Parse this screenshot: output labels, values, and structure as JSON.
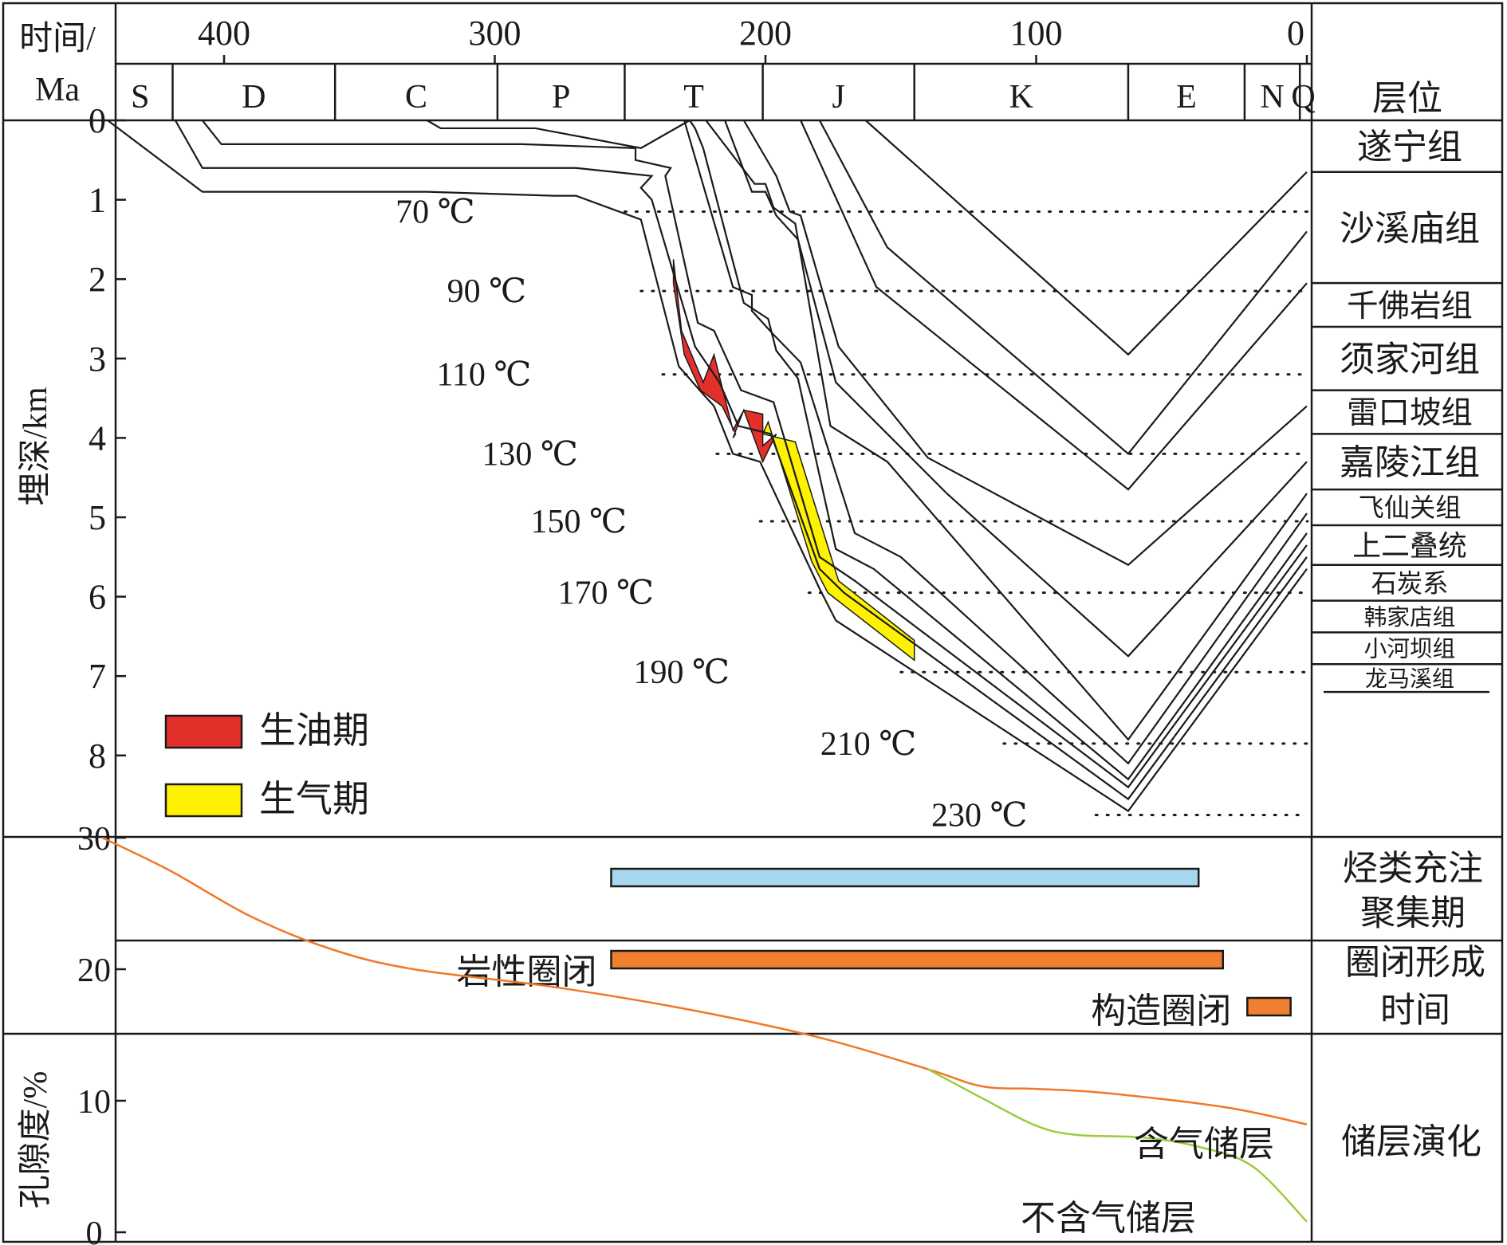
{
  "chart_data": {
    "type": "line",
    "header": {
      "time_label_line1": "时间/",
      "time_label_line2": "Ma",
      "layer_header": "层位",
      "depth_label": "埋深/km"
    },
    "x_axis": {
      "ticks": [
        400,
        300,
        200,
        100,
        0
      ],
      "range": [
        450,
        0
      ]
    },
    "periods": [
      {
        "label": "S",
        "start": 443,
        "end": 419
      },
      {
        "label": "D",
        "start": 419,
        "end": 359
      },
      {
        "label": "C",
        "start": 359,
        "end": 299
      },
      {
        "label": "P",
        "start": 299,
        "end": 252
      },
      {
        "label": "T",
        "start": 252,
        "end": 201
      },
      {
        "label": "J",
        "start": 201,
        "end": 145
      },
      {
        "label": "K",
        "start": 145,
        "end": 66
      },
      {
        "label": "E",
        "start": 66,
        "end": 23
      },
      {
        "label": "N",
        "start": 23,
        "end": 2.6
      },
      {
        "label": "Q",
        "start": 2.6,
        "end": 0
      }
    ],
    "y_axis": {
      "ticks": [
        0,
        1,
        2,
        3,
        4,
        5,
        6,
        7,
        8
      ],
      "range": [
        0,
        9
      ]
    },
    "isotherms": [
      {
        "label": "70 ℃",
        "depth": 1.15,
        "label_time": 322,
        "line_start": 252
      },
      {
        "label": "90 ℃",
        "depth": 2.15,
        "label_time": 303,
        "line_start": 246
      },
      {
        "label": "110 ℃",
        "depth": 3.2,
        "label_time": 304,
        "line_start": 238
      },
      {
        "label": "130 ℃",
        "depth": 4.2,
        "label_time": 287,
        "line_start": 218
      },
      {
        "label": "150 ℃",
        "depth": 5.05,
        "label_time": 269,
        "line_start": 202
      },
      {
        "label": "170 ℃",
        "depth": 5.95,
        "label_time": 259,
        "line_start": 184
      },
      {
        "label": "190 ℃",
        "depth": 6.95,
        "label_time": 231,
        "line_start": 150
      },
      {
        "label": "210 ℃",
        "depth": 7.85,
        "label_time": 162,
        "line_start": 112
      },
      {
        "label": "230 ℃",
        "depth": 8.75,
        "label_time": 121,
        "line_start": 78
      }
    ],
    "burial_curves": [
      {
        "points": [
          [
            443,
            0
          ],
          [
            408,
            0.9
          ],
          [
            345,
            0.9
          ],
          [
            325,
            0.9
          ],
          [
            278,
            0.95
          ],
          [
            270,
            0.95
          ],
          [
            246,
            1.25
          ],
          [
            232,
            3.1
          ],
          [
            223,
            3.45
          ],
          [
            219,
            3.6
          ],
          [
            212,
            4.2
          ],
          [
            202,
            4.3
          ],
          [
            180,
            5.9
          ],
          [
            174,
            6.3
          ],
          [
            66,
            8.7
          ],
          [
            0,
            5.65
          ]
        ]
      },
      {
        "points": [
          [
            418,
            0
          ],
          [
            408,
            0.6
          ],
          [
            345,
            0.6
          ],
          [
            325,
            0.6
          ],
          [
            270,
            0.6
          ],
          [
            242,
            0.7
          ],
          [
            246,
            0.85
          ],
          [
            242,
            1.0
          ],
          [
            226,
            2.85
          ],
          [
            218,
            3.25
          ],
          [
            217,
            3.3
          ],
          [
            210,
            3.85
          ],
          [
            198,
            3.95
          ],
          [
            180,
            5.65
          ],
          [
            171,
            5.95
          ],
          [
            66,
            8.55
          ],
          [
            0,
            5.5
          ]
        ]
      },
      {
        "points": [
          [
            408,
            0
          ],
          [
            401,
            0.3
          ],
          [
            345,
            0.3
          ],
          [
            325,
            0.3
          ],
          [
            290,
            0.3
          ],
          [
            248,
            0.35
          ],
          [
            248,
            0.5
          ],
          [
            235,
            0.6
          ],
          [
            237,
            0.7
          ],
          [
            225,
            2.55
          ],
          [
            219,
            2.65
          ],
          [
            215,
            2.95
          ],
          [
            209,
            3.4
          ],
          [
            197,
            3.55
          ],
          [
            180,
            5.5
          ],
          [
            167,
            5.8
          ],
          [
            66,
            8.4
          ],
          [
            0,
            5.35
          ]
        ]
      },
      {
        "points": [
          [
            325,
            0
          ],
          [
            320,
            0.1
          ],
          [
            285,
            0.1
          ],
          [
            246,
            0.35
          ],
          [
            228,
            0
          ],
          [
            226,
            0.1
          ],
          [
            223,
            0.35
          ],
          [
            208,
            2.3
          ],
          [
            199,
            2.5
          ],
          [
            196,
            2.9
          ],
          [
            188,
            3.25
          ],
          [
            174,
            5.4
          ],
          [
            160,
            5.65
          ],
          [
            66,
            8.3
          ],
          [
            0,
            5.2
          ]
        ]
      },
      {
        "points": [
          [
            230,
            0
          ],
          [
            212,
            2.1
          ],
          [
            205,
            2.2
          ],
          [
            205,
            2.4
          ],
          [
            197,
            2.7
          ],
          [
            187,
            3.05
          ],
          [
            167,
            5.2
          ],
          [
            150,
            5.5
          ],
          [
            66,
            8.1
          ],
          [
            0,
            4.95
          ]
        ]
      },
      {
        "points": [
          [
            222,
            0
          ],
          [
            204,
            0.8
          ],
          [
            200,
            0.8
          ],
          [
            197,
            1.1
          ],
          [
            189,
            1.3
          ],
          [
            176,
            3.85
          ],
          [
            155,
            4.3
          ],
          [
            66,
            7.8
          ],
          [
            0,
            4.7
          ]
        ]
      },
      {
        "points": [
          [
            215,
            0
          ],
          [
            205,
            0.9
          ],
          [
            200,
            0.9
          ],
          [
            196,
            1.2
          ],
          [
            188,
            1.5
          ],
          [
            174,
            3.3
          ],
          [
            133,
            4.7
          ],
          [
            66,
            6.75
          ],
          [
            0,
            4.3
          ]
        ]
      },
      {
        "points": [
          [
            208,
            0
          ],
          [
            196,
            0.7
          ],
          [
            191,
            1.15
          ],
          [
            187,
            1.2
          ],
          [
            173,
            2.85
          ],
          [
            140,
            4.25
          ],
          [
            66,
            5.6
          ],
          [
            0,
            3.6
          ]
        ]
      },
      {
        "points": [
          [
            187,
            0
          ],
          [
            159,
            2.1
          ],
          [
            66,
            4.65
          ],
          [
            0,
            2.05
          ]
        ]
      },
      {
        "points": [
          [
            180,
            0
          ],
          [
            155,
            1.6
          ],
          [
            66,
            4.2
          ],
          [
            0,
            1.4
          ]
        ]
      },
      {
        "points": [
          [
            163,
            0
          ],
          [
            66,
            2.95
          ],
          [
            0,
            0.65
          ]
        ]
      }
    ],
    "oil_window": {
      "label": "生油期",
      "color": "#e4302b",
      "polygon": [
        [
          234,
          1.75
        ],
        [
          231,
          2.65
        ],
        [
          223,
          3.3
        ],
        [
          219,
          2.95
        ],
        [
          215,
          3.5
        ],
        [
          212,
          3.9
        ],
        [
          208,
          3.65
        ],
        [
          201,
          3.7
        ],
        [
          201,
          4.1
        ],
        [
          196,
          3.95
        ],
        [
          201,
          4.3
        ],
        [
          208,
          3.65
        ],
        [
          212,
          4.0
        ],
        [
          211,
          3.95
        ],
        [
          216,
          3.6
        ],
        [
          224,
          3.4
        ],
        [
          230,
          2.95
        ],
        [
          234,
          2.05
        ]
      ]
    },
    "gas_window": {
      "label": "生气期",
      "color": "#fff200",
      "polygon": [
        [
          201,
          3.95
        ],
        [
          199,
          3.8
        ],
        [
          183,
          5.55
        ],
        [
          177,
          5.95
        ],
        [
          145,
          6.8
        ],
        [
          145,
          6.55
        ],
        [
          173,
          5.8
        ],
        [
          189,
          4.05
        ]
      ]
    },
    "formations": [
      {
        "name": "遂宁组",
        "top": 0,
        "bottom": 0.65
      },
      {
        "name": "沙溪庙组",
        "top": 0.65,
        "bottom": 2.05
      },
      {
        "name": "千佛岩组",
        "top": 2.05,
        "bottom": 2.6
      },
      {
        "name": "须家河组",
        "top": 2.6,
        "bottom": 3.4
      },
      {
        "name": "雷口坡组",
        "top": 3.4,
        "bottom": 3.95
      },
      {
        "name": "嘉陵江组",
        "top": 3.95,
        "bottom": 4.65
      },
      {
        "name": "飞仙关组",
        "top": 4.65,
        "bottom": 5.1
      },
      {
        "name": "上二叠统",
        "top": 5.1,
        "bottom": 5.6
      },
      {
        "name": "石炭系",
        "top": 5.6,
        "bottom": 6.05
      },
      {
        "name": "韩家店组",
        "top": 6.05,
        "bottom": 6.45
      },
      {
        "name": "小河坝组",
        "top": 6.45,
        "bottom": 6.85
      },
      {
        "name": "龙马溪组",
        "top": 6.85,
        "bottom": 7.2
      }
    ],
    "legend": [
      {
        "label": "生油期",
        "color": "#e4302b"
      },
      {
        "label": "生气期",
        "color": "#fff200"
      }
    ],
    "hydrocarbon_charging": {
      "row_label_line1": "烃类充注",
      "row_label_line2": "聚集期",
      "start": 257,
      "end": 40,
      "color": "#a7d7ef"
    },
    "trap_formation": {
      "row_label_line1": "圈闭形成",
      "row_label_line2": "时间",
      "bars": [
        {
          "label": "岩性圈闭",
          "start": 257,
          "end": 31,
          "color": "#f08030"
        },
        {
          "label": "构造圈闭",
          "start": 22,
          "end": 6,
          "color": "#f08030"
        }
      ]
    },
    "porosity": {
      "row_label": "储层演化",
      "ylabel": "孔隙度/%",
      "y_ticks": [
        0,
        10,
        20,
        30
      ],
      "y_range": [
        0,
        30
      ],
      "series": [
        {
          "name": "含气储层",
          "color": "#f07828",
          "points": [
            [
              445,
              30
            ],
            [
              420,
              27.5
            ],
            [
              390,
              24
            ],
            [
              360,
              21.5
            ],
            [
              330,
              20
            ],
            [
              280,
              18.7
            ],
            [
              230,
              17
            ],
            [
              180,
              14.8
            ],
            [
              140,
              12.4
            ],
            [
              120,
              11.1
            ],
            [
              100,
              10.9
            ],
            [
              75,
              10.6
            ],
            [
              30,
              9.5
            ],
            [
              0,
              8.2
            ]
          ]
        },
        {
          "name": "不含气储层",
          "color": "#9ccc3c",
          "points": [
            [
              140,
              12.4
            ],
            [
              120,
              10.2
            ],
            [
              100,
              8.1
            ],
            [
              85,
              7.4
            ],
            [
              60,
              7.2
            ],
            [
              40,
              6.5
            ],
            [
              20,
              5
            ],
            [
              0,
              0.8
            ]
          ]
        }
      ]
    }
  }
}
